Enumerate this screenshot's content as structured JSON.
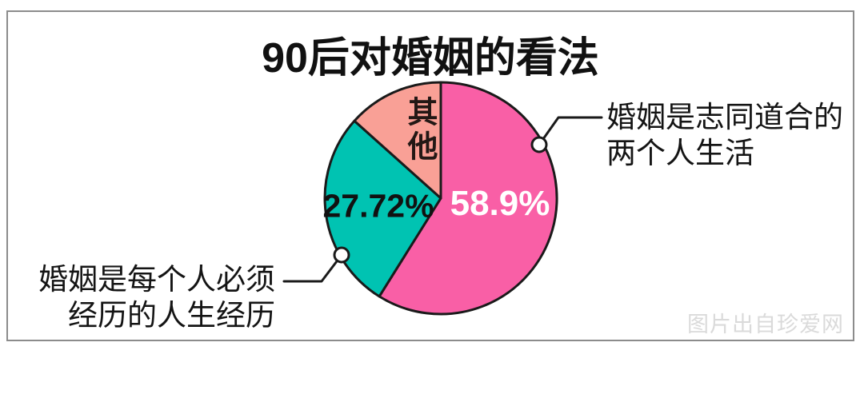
{
  "watermark": "图片出自珍爱网",
  "chart_data": {
    "type": "pie",
    "title": "90后对婚姻的看法",
    "legend_position": "none",
    "outline_color": "#1A1A1A",
    "start_angle": "12-o-clock, clockwise",
    "slices": [
      {
        "name": "婚姻是志同道合的两个人生活",
        "value": 58.9,
        "value_label": "58.9%",
        "color": "#F95FA6",
        "label_color": "#FFFFFF",
        "callout_lines": [
          "婚姻是志同道合的",
          "两个人生活"
        ]
      },
      {
        "name": "婚姻是每个人必须经历的人生经历",
        "value": 27.72,
        "value_label": "27.72%",
        "color": "#00C3B2",
        "label_color": "#111111",
        "callout_lines": [
          "婚姻是每个人必须",
          "经历的人生经历"
        ]
      },
      {
        "name": "其他",
        "value": 13.38,
        "value_label": "其他",
        "color": "#F9A096",
        "label_color": "#231815"
      }
    ]
  }
}
